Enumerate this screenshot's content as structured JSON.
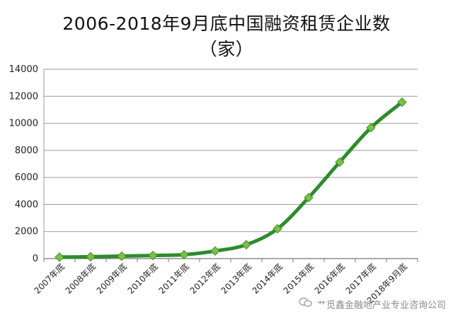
{
  "chart_data": {
    "type": "line",
    "title": "2006-2018年9月底中国融资租赁企业数",
    "subtitle": "（家）",
    "categories": [
      "2007年底",
      "2008年底",
      "2009年底",
      "2010年底",
      "2011年底",
      "2012年底",
      "2013年底",
      "2014年底",
      "2015年底",
      "2016年底",
      "2017年底",
      "2018年9月底"
    ],
    "series": [
      {
        "values": [
          109,
          138,
          180,
          230,
          287,
          560,
          1026,
          2202,
          4508,
          7136,
          9676,
          11565
        ]
      }
    ],
    "ylim": [
      0,
      14000
    ],
    "yticks": [
      0,
      2000,
      4000,
      6000,
      8000,
      10000,
      12000,
      14000
    ],
    "grid": true,
    "line_color": "#2e8b2e",
    "marker_color": "#7dc142"
  },
  "watermark": {
    "text": "⺾觅鑫金融地产业专业咨询公司",
    "icon": "wechat-icon"
  }
}
